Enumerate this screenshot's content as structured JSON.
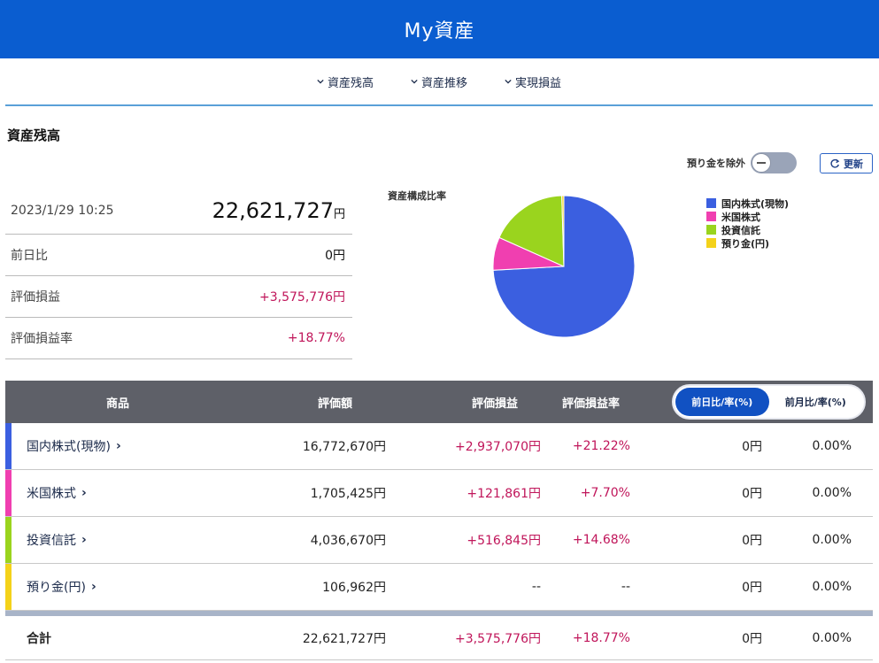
{
  "header": {
    "title": "My資産"
  },
  "nav": {
    "items": [
      {
        "label": "資産残高"
      },
      {
        "label": "資産推移"
      },
      {
        "label": "実現損益"
      }
    ]
  },
  "section": {
    "title": "資産残高"
  },
  "controls": {
    "exclude_deposit_label": "預り金を除外",
    "refresh_label": "更新"
  },
  "summary": {
    "datetime": "2023/1/29 10:25",
    "total_value": "22,621,727",
    "total_unit": "円",
    "rows": [
      {
        "label": "前日比",
        "value": "0円"
      },
      {
        "label": "評価損益",
        "value": "+3,575,776円"
      },
      {
        "label": "評価損益率",
        "value": "+18.77%"
      }
    ]
  },
  "chart_data": {
    "type": "pie",
    "title": "資産構成比率",
    "categories": [
      "国内株式(現物)",
      "米国株式",
      "投資信託",
      "預り金(円)"
    ],
    "values": [
      16772670,
      1705425,
      4036670,
      106962
    ],
    "colors": [
      "#3b5fe0",
      "#f03fb0",
      "#9ad41e",
      "#f4d21a"
    ],
    "legend": "right"
  },
  "table": {
    "headers": {
      "product": "商品",
      "value": "評価額",
      "pl": "評価損益",
      "pl_rate": "評価損益率"
    },
    "toggle": {
      "daily": "前日比/率(%)",
      "monthly": "前月比/率(%)"
    },
    "rows": [
      {
        "name": "国内株式(現物)",
        "arrow": "›",
        "value": "16,772,670円",
        "pl": "+2,937,070円",
        "pl_rate": "+21.22%",
        "diff": "0円",
        "diff_rate": "0.00%",
        "color": "#3b5fe0"
      },
      {
        "name": "米国株式",
        "arrow": "›",
        "value": "1,705,425円",
        "pl": "+121,861円",
        "pl_rate": "+7.70%",
        "diff": "0円",
        "diff_rate": "0.00%",
        "color": "#f03fb0"
      },
      {
        "name": "投資信託",
        "arrow": "›",
        "value": "4,036,670円",
        "pl": "+516,845円",
        "pl_rate": "+14.68%",
        "diff": "0円",
        "diff_rate": "0.00%",
        "color": "#9ad41e"
      },
      {
        "name": "預り金(円)",
        "arrow": "›",
        "value": "106,962円",
        "pl": "--",
        "pl_rate": "--",
        "diff": "0円",
        "diff_rate": "0.00%",
        "color": "#f4d21a"
      }
    ],
    "total": {
      "name": "合計",
      "value": "22,621,727円",
      "pl": "+3,575,776円",
      "pl_rate": "+18.77%",
      "diff": "0円",
      "diff_rate": "0.00%"
    }
  }
}
